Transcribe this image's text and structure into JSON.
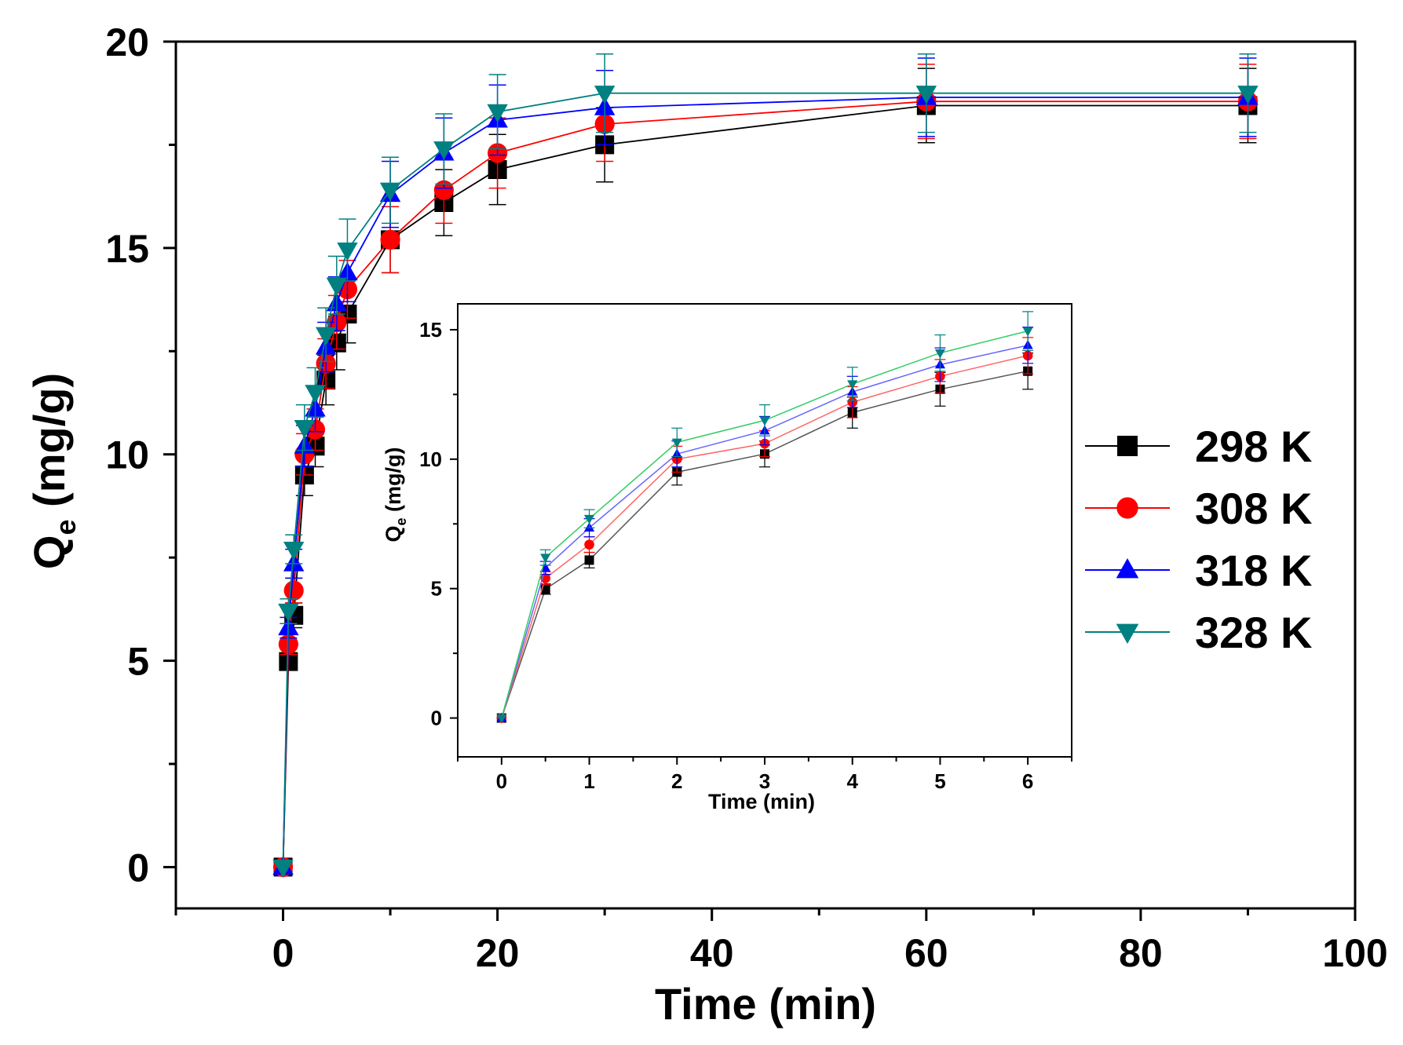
{
  "chart_data": {
    "type": "line",
    "main": {
      "x": [
        0,
        0.5,
        1,
        2,
        3,
        4,
        5,
        6,
        10,
        15,
        20,
        30,
        60,
        90
      ],
      "xlim": [
        -10,
        100
      ],
      "ylim": [
        -1,
        20
      ],
      "x_ticks": [
        0,
        20,
        40,
        60,
        80,
        100
      ],
      "y_ticks": [
        0,
        5,
        10,
        15,
        20
      ],
      "xlabel": "Time (min)",
      "ylabel_main": "Q",
      "ylabel_sub": "e",
      "ylabel_unit": " (mg/g)"
    },
    "inset": {
      "x": [
        0,
        0.5,
        1,
        2,
        3,
        4,
        5,
        6
      ],
      "xlim": [
        -0.5,
        6.5
      ],
      "ylim": [
        -1.5,
        16
      ],
      "x_ticks": [
        0,
        1,
        2,
        3,
        4,
        5,
        6
      ],
      "y_ticks": [
        0,
        5,
        10,
        15
      ],
      "xlabel": "Time (min)",
      "ylabel_main": "Q",
      "ylabel_sub": "e",
      "ylabel_unit": " (mg/g)"
    },
    "series": [
      {
        "name": "298 K",
        "marker": "square",
        "color": "#000000",
        "values": [
          0,
          4.98,
          6.1,
          9.5,
          10.2,
          11.8,
          12.7,
          13.4,
          15.2,
          16.1,
          16.9,
          17.5,
          18.45,
          18.45
        ],
        "errors": [
          0,
          0.2,
          0.3,
          0.5,
          0.5,
          0.6,
          0.65,
          0.7,
          0.8,
          0.8,
          0.85,
          0.9,
          0.9,
          0.9
        ]
      },
      {
        "name": "308 K",
        "marker": "circle",
        "color": "#ff0000",
        "values": [
          0,
          5.4,
          6.7,
          10.0,
          10.6,
          12.2,
          13.2,
          14.0,
          15.2,
          16.4,
          17.3,
          18.0,
          18.55,
          18.55
        ],
        "errors": [
          0,
          0.25,
          0.3,
          0.5,
          0.5,
          0.6,
          0.65,
          0.7,
          0.8,
          0.8,
          0.85,
          0.9,
          0.9,
          0.9
        ]
      },
      {
        "name": "318 K",
        "marker": "triangle-up",
        "color": "#0000ff",
        "values": [
          0,
          5.8,
          7.35,
          10.2,
          11.1,
          12.6,
          13.65,
          14.4,
          16.3,
          17.3,
          18.1,
          18.4,
          18.65,
          18.65
        ],
        "errors": [
          0,
          0.25,
          0.35,
          0.5,
          0.55,
          0.6,
          0.65,
          0.7,
          0.8,
          0.85,
          0.85,
          0.9,
          0.95,
          0.95
        ]
      },
      {
        "name": "328 K",
        "marker": "triangle-down",
        "color": "#008080",
        "values": [
          0,
          6.2,
          7.7,
          10.65,
          11.5,
          12.9,
          14.1,
          14.95,
          16.4,
          17.4,
          18.3,
          18.75,
          18.75,
          18.75
        ],
        "errors": [
          0,
          0.3,
          0.35,
          0.55,
          0.6,
          0.65,
          0.7,
          0.75,
          0.8,
          0.85,
          0.9,
          0.95,
          0.95,
          0.95
        ]
      }
    ],
    "inset_line_colors": [
      "#555555",
      "#ff6666",
      "#6666ff",
      "#33cc66"
    ],
    "legend_position": "right"
  }
}
